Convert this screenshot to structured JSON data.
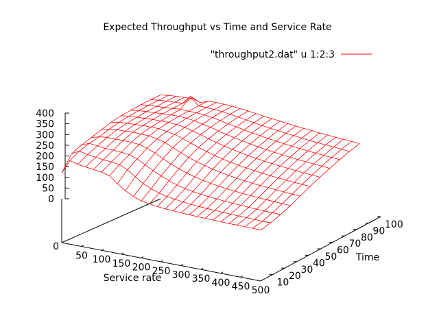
{
  "chart_data": {
    "type": "surface",
    "title": "Expected Throughput vs Time and Service Rate",
    "xlabel": "Service rate",
    "ylabel": "Time",
    "zlabel": "",
    "legend": [
      {
        "label": "\"throughput2.dat\" u 1:2:3",
        "color": "#ff0000"
      }
    ],
    "legend_position": "top-right",
    "x_ticks": [
      "50",
      "100",
      "150",
      "200",
      "250",
      "300",
      "350",
      "400",
      "450",
      "500"
    ],
    "y_ticks": [
      "10",
      "20",
      "30",
      "40",
      "50",
      "60",
      "70",
      "80",
      "90",
      "100"
    ],
    "z_ticks": [
      "0",
      "50",
      "100",
      "150",
      "200",
      "250",
      "300",
      "350",
      "400"
    ],
    "base_tick": "0",
    "xlim": [
      0,
      500
    ],
    "ylim": [
      0,
      100
    ],
    "zlim": [
      0,
      400
    ],
    "grid_x": [
      0,
      20,
      40,
      60,
      80,
      100,
      120,
      140,
      160,
      180,
      200,
      220,
      240,
      260,
      280,
      300,
      320,
      340,
      360,
      380,
      400,
      420,
      440,
      460,
      480,
      500
    ],
    "grid_y": [
      0,
      10,
      20,
      30,
      40,
      50,
      60,
      70,
      80,
      90,
      100
    ],
    "z_values": [
      [
        120,
        190,
        210,
        225,
        240,
        255,
        265,
        270,
        275,
        278,
        280
      ],
      [
        185,
        210,
        225,
        235,
        250,
        262,
        270,
        275,
        280,
        283,
        285
      ],
      [
        175,
        200,
        220,
        240,
        255,
        265,
        272,
        278,
        282,
        286,
        288
      ],
      [
        170,
        195,
        215,
        238,
        255,
        266,
        274,
        280,
        284,
        288,
        290
      ],
      [
        165,
        190,
        215,
        240,
        258,
        268,
        276,
        282,
        287,
        290,
        292
      ],
      [
        160,
        188,
        212,
        238,
        256,
        268,
        276,
        284,
        290,
        330,
        280
      ],
      [
        150,
        182,
        208,
        235,
        255,
        268,
        277,
        285,
        288,
        292,
        294
      ],
      [
        120,
        165,
        195,
        225,
        248,
        262,
        274,
        283,
        288,
        292,
        295
      ],
      [
        95,
        140,
        175,
        210,
        238,
        255,
        268,
        278,
        285,
        290,
        294
      ],
      [
        75,
        115,
        155,
        190,
        222,
        243,
        258,
        270,
        280,
        287,
        292
      ],
      [
        62,
        98,
        138,
        172,
        205,
        230,
        248,
        262,
        273,
        282,
        288
      ],
      [
        55,
        85,
        122,
        158,
        190,
        216,
        236,
        252,
        265,
        276,
        284
      ],
      [
        50,
        76,
        110,
        145,
        177,
        204,
        226,
        243,
        258,
        270,
        279
      ],
      [
        46,
        70,
        100,
        134,
        166,
        193,
        216,
        235,
        251,
        264,
        274
      ],
      [
        44,
        65,
        93,
        125,
        157,
        184,
        208,
        227,
        244,
        258,
        270
      ],
      [
        42,
        61,
        88,
        118,
        149,
        176,
        200,
        220,
        238,
        253,
        265
      ],
      [
        40,
        58,
        83,
        112,
        142,
        169,
        193,
        214,
        232,
        248,
        261
      ],
      [
        39,
        56,
        80,
        107,
        136,
        163,
        187,
        208,
        227,
        243,
        257
      ],
      [
        38,
        54,
        77,
        103,
        131,
        158,
        182,
        203,
        222,
        239,
        253
      ],
      [
        37,
        52,
        74,
        100,
        127,
        153,
        177,
        198,
        218,
        235,
        250
      ],
      [
        36,
        51,
        72,
        97,
        123,
        149,
        173,
        194,
        214,
        231,
        246
      ],
      [
        35,
        50,
        70,
        94,
        120,
        145,
        169,
        190,
        210,
        228,
        243
      ],
      [
        35,
        49,
        68,
        92,
        117,
        142,
        166,
        187,
        207,
        225,
        240
      ],
      [
        34,
        48,
        67,
        90,
        115,
        139,
        163,
        184,
        204,
        222,
        238
      ],
      [
        34,
        47,
        66,
        88,
        112,
        137,
        160,
        181,
        201,
        219,
        235
      ],
      [
        33,
        46,
        64,
        86,
        110,
        134,
        157,
        178,
        198,
        216,
        232
      ]
    ]
  }
}
